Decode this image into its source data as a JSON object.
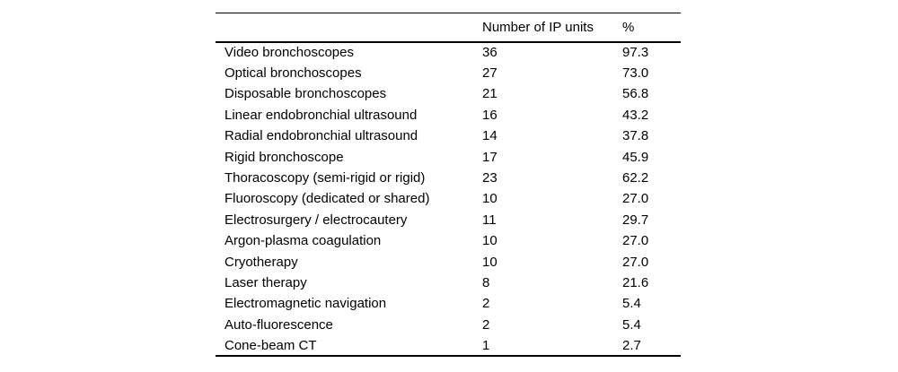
{
  "colors": {
    "background": "#ffffff",
    "text": "#000000",
    "rule": "#000000"
  },
  "table": {
    "columns": [
      {
        "label": ""
      },
      {
        "label": "Number of IP units"
      },
      {
        "label": "%"
      }
    ],
    "rows": [
      {
        "label": "Video bronchoscopes",
        "count": "36",
        "percent": "97.3"
      },
      {
        "label": "Optical bronchoscopes",
        "count": "27",
        "percent": "73.0"
      },
      {
        "label": "Disposable bronchoscopes",
        "count": "21",
        "percent": "56.8"
      },
      {
        "label": "Linear endobronchial ultrasound",
        "count": "16",
        "percent": "43.2"
      },
      {
        "label": "Radial endobronchial ultrasound",
        "count": "14",
        "percent": "37.8"
      },
      {
        "label": "Rigid bronchoscope",
        "count": "17",
        "percent": "45.9"
      },
      {
        "label": "Thoracoscopy (semi-rigid or rigid)",
        "count": "23",
        "percent": "62.2"
      },
      {
        "label": "Fluoroscopy (dedicated or shared)",
        "count": "10",
        "percent": "27.0"
      },
      {
        "label": "Electrosurgery / electrocautery",
        "count": "11",
        "percent": "29.7"
      },
      {
        "label": "Argon-plasma coagulation",
        "count": "10",
        "percent": "27.0"
      },
      {
        "label": "Cryotherapy",
        "count": "10",
        "percent": "27.0"
      },
      {
        "label": "Laser therapy",
        "count": "8",
        "percent": "21.6"
      },
      {
        "label": "Electromagnetic navigation",
        "count": "2",
        "percent": "5.4"
      },
      {
        "label": "Auto-fluorescence",
        "count": "2",
        "percent": "5.4"
      },
      {
        "label": "Cone-beam CT",
        "count": "1",
        "percent": "2.7"
      }
    ]
  }
}
